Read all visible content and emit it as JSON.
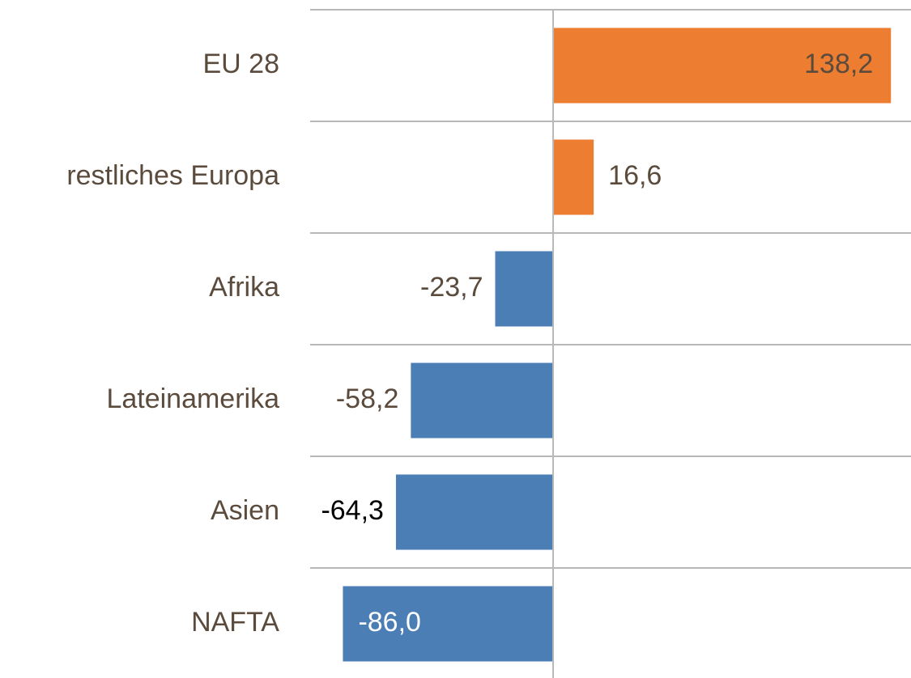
{
  "chart_data": {
    "type": "hbar",
    "categories": [
      "EU 28",
      "restliches Europa",
      "Afrika",
      "Lateinamerika",
      "Asien",
      "NAFTA"
    ],
    "values": [
      138.2,
      16.6,
      -23.7,
      -58.2,
      -64.3,
      -86.0
    ],
    "value_labels": [
      "138,2",
      "16,6",
      "-23,7",
      "-58,2",
      "-64,3",
      "-86,0"
    ],
    "colors": [
      "#ED7D31",
      "#ED7D31",
      "#4A7EB4",
      "#4A7EB4",
      "#4A7EB4",
      "#4A7EB4"
    ],
    "value_label_colors": [
      "#5B4B3C",
      "#5B4B3C",
      "#5B4B3C",
      "#5B4B3C",
      "#000000",
      "#FFFFFF"
    ],
    "xlim": [
      -99.4,
      146.4
    ]
  }
}
